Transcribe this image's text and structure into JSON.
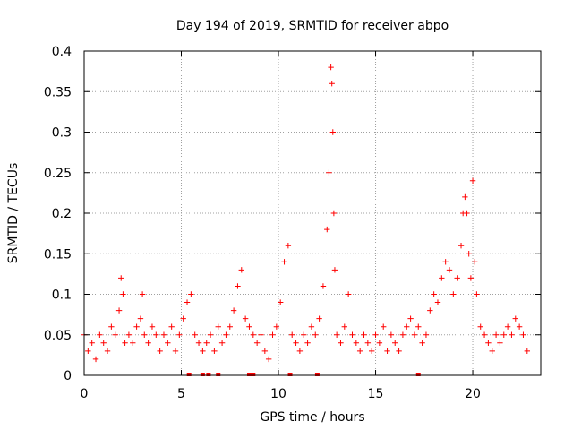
{
  "chart_data": {
    "type": "scatter",
    "title": "Day 194 of 2019, SRMTID for receiver abpo",
    "xlabel": "GPS time / hours",
    "ylabel": "SRMTID / TECUs",
    "xlim": [
      0,
      23.5
    ],
    "ylim": [
      0,
      0.4
    ],
    "xticks": [
      0,
      5,
      10,
      15,
      20
    ],
    "xtick_labels": [
      "0",
      "5",
      "10",
      "15",
      "20"
    ],
    "yticks": [
      0,
      0.05,
      0.1,
      0.15,
      0.2,
      0.25,
      0.3,
      0.35,
      0.4
    ],
    "ytick_labels": [
      "0",
      "0.05",
      "0.1",
      "0.15",
      "0.2",
      "0.25",
      "0.3",
      "0.35",
      "0.4"
    ],
    "grid": true,
    "marker": "+",
    "color": "#ff0000",
    "series": [
      {
        "name": "SRMTID",
        "x": [
          0.0,
          0.2,
          0.4,
          0.6,
          0.8,
          1.0,
          1.2,
          1.4,
          1.6,
          1.8,
          1.9,
          2.0,
          2.1,
          2.3,
          2.5,
          2.7,
          2.9,
          3.0,
          3.1,
          3.3,
          3.5,
          3.7,
          3.9,
          4.1,
          4.3,
          4.5,
          4.7,
          4.9,
          5.1,
          5.3,
          5.5,
          5.7,
          5.9,
          6.1,
          6.3,
          6.5,
          6.7,
          6.9,
          7.1,
          7.3,
          7.5,
          7.7,
          7.9,
          8.1,
          8.3,
          8.5,
          8.7,
          8.9,
          9.1,
          9.3,
          9.5,
          9.7,
          9.9,
          10.1,
          10.3,
          10.5,
          10.7,
          10.9,
          11.1,
          11.3,
          11.5,
          11.7,
          11.9,
          12.1,
          12.3,
          12.5,
          12.6,
          12.7,
          12.75,
          12.8,
          12.85,
          12.9,
          13.0,
          13.2,
          13.4,
          13.6,
          13.8,
          14.0,
          14.2,
          14.4,
          14.6,
          14.8,
          15.0,
          15.2,
          15.4,
          15.6,
          15.8,
          16.0,
          16.2,
          16.4,
          16.6,
          16.8,
          17.0,
          17.2,
          17.4,
          17.6,
          17.8,
          18.0,
          18.2,
          18.4,
          18.6,
          18.8,
          19.0,
          19.2,
          19.4,
          19.5,
          19.6,
          19.7,
          19.8,
          19.9,
          20.0,
          20.1,
          20.2,
          20.4,
          20.6,
          20.8,
          21.0,
          21.2,
          21.4,
          21.6,
          21.8,
          22.0,
          22.2,
          22.4,
          22.6,
          22.8
        ],
        "y": [
          0.05,
          0.03,
          0.04,
          0.02,
          0.05,
          0.04,
          0.03,
          0.06,
          0.05,
          0.08,
          0.12,
          0.1,
          0.04,
          0.05,
          0.04,
          0.06,
          0.07,
          0.1,
          0.05,
          0.04,
          0.06,
          0.05,
          0.03,
          0.05,
          0.04,
          0.06,
          0.03,
          0.05,
          0.07,
          0.09,
          0.1,
          0.05,
          0.04,
          0.03,
          0.04,
          0.05,
          0.03,
          0.06,
          0.04,
          0.05,
          0.06,
          0.08,
          0.11,
          0.13,
          0.07,
          0.06,
          0.05,
          0.04,
          0.05,
          0.03,
          0.02,
          0.05,
          0.06,
          0.09,
          0.14,
          0.16,
          0.05,
          0.04,
          0.03,
          0.05,
          0.04,
          0.06,
          0.05,
          0.07,
          0.11,
          0.18,
          0.25,
          0.38,
          0.36,
          0.3,
          0.2,
          0.13,
          0.05,
          0.04,
          0.06,
          0.1,
          0.05,
          0.04,
          0.03,
          0.05,
          0.04,
          0.03,
          0.05,
          0.04,
          0.06,
          0.03,
          0.05,
          0.04,
          0.03,
          0.05,
          0.06,
          0.07,
          0.05,
          0.06,
          0.04,
          0.05,
          0.08,
          0.1,
          0.09,
          0.12,
          0.14,
          0.13,
          0.1,
          0.12,
          0.16,
          0.2,
          0.22,
          0.2,
          0.15,
          0.12,
          0.24,
          0.14,
          0.1,
          0.06,
          0.05,
          0.04,
          0.03,
          0.05,
          0.04,
          0.05,
          0.06,
          0.05,
          0.07,
          0.06,
          0.05,
          0.03
        ]
      }
    ]
  }
}
